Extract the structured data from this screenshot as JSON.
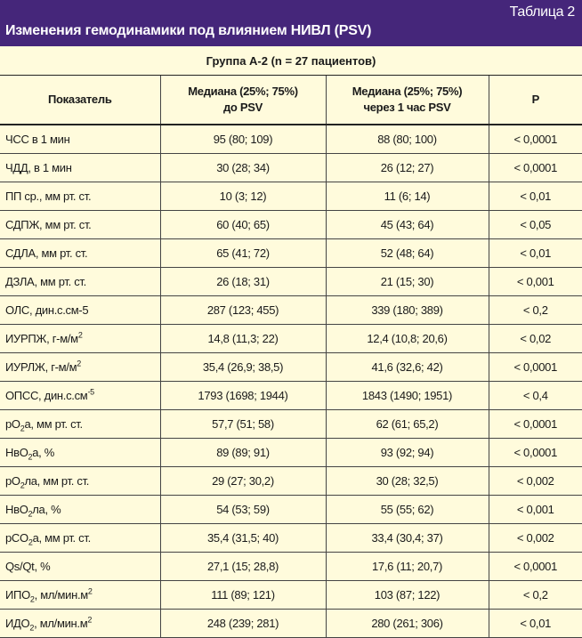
{
  "table_number": "Таблица 2",
  "title": "Изменения гемодинамики под влиянием НИВЛ (PSV)",
  "group": "Группа А-2 (n = 27 пациентов)",
  "colors": {
    "banner": "#45267a",
    "background": "#fffbdc"
  },
  "headers": {
    "indicator": "Показатель",
    "before_line1": "Медиана (25%; 75%)",
    "before_line2": "до PSV",
    "after_line1": "Медиана (25%; 75%)",
    "after_line2": "через 1 час PSV",
    "p": "P"
  },
  "rows": [
    {
      "label": [
        {
          "t": "ЧСС в 1 мин"
        }
      ],
      "before": "95 (80; 109)",
      "after": "88 (80; 100)",
      "p": "< 0,0001"
    },
    {
      "label": [
        {
          "t": "ЧДД, в 1 мин"
        }
      ],
      "before": "30 (28; 34)",
      "after": "26 (12; 27)",
      "p": "< 0,0001"
    },
    {
      "label": [
        {
          "t": "ПП ср., мм рт. ст."
        }
      ],
      "before": "10 (3; 12)",
      "after": "11 (6; 14)",
      "p": "< 0,01"
    },
    {
      "label": [
        {
          "t": "СДПЖ, мм рт. ст."
        }
      ],
      "before": "60 (40; 65)",
      "after": "45 (43; 64)",
      "p": "< 0,05"
    },
    {
      "label": [
        {
          "t": "СДЛА, мм рт. ст."
        }
      ],
      "before": "65 (41; 72)",
      "after": "52 (48; 64)",
      "p": "< 0,01"
    },
    {
      "label": [
        {
          "t": "ДЗЛА, мм рт. ст."
        }
      ],
      "before": "26 (18; 31)",
      "after": "21 (15; 30)",
      "p": "< 0,001"
    },
    {
      "label": [
        {
          "t": "ОЛС, дин.с.см-5"
        }
      ],
      "before": "287 (123; 455)",
      "after": "339 (180; 389)",
      "p": "< 0,2"
    },
    {
      "label": [
        {
          "t": "ИУРПЖ, г-м/м"
        },
        {
          "sup": "2"
        }
      ],
      "before": "14,8 (11,3; 22)",
      "after": "12,4 (10,8; 20,6)",
      "p": "< 0,02"
    },
    {
      "label": [
        {
          "t": "ИУРЛЖ, г-м/м"
        },
        {
          "sup": "2"
        }
      ],
      "before": "35,4 (26,9; 38,5)",
      "after": "41,6 (32,6; 42)",
      "p": "< 0,0001"
    },
    {
      "label": [
        {
          "t": "ОПСС, дин.с.см"
        },
        {
          "sup": "-5"
        }
      ],
      "before": "1793 (1698; 1944)",
      "after": "1843 (1490; 1951)",
      "p": "< 0,4"
    },
    {
      "label": [
        {
          "t": "pO"
        },
        {
          "sub": "2"
        },
        {
          "t": "а, мм рт. ст."
        }
      ],
      "before": "57,7 (51; 58)",
      "after": "62 (61; 65,2)",
      "p": "< 0,0001"
    },
    {
      "label": [
        {
          "t": "HвO"
        },
        {
          "sub": "2"
        },
        {
          "t": "а, %"
        }
      ],
      "before": "89 (89; 91)",
      "after": "93 (92; 94)",
      "p": "< 0,0001"
    },
    {
      "label": [
        {
          "t": "pO"
        },
        {
          "sub": "2"
        },
        {
          "t": "ла, мм рт. ст."
        }
      ],
      "before": "29 (27; 30,2)",
      "after": "30 (28; 32,5)",
      "p": "< 0,002"
    },
    {
      "label": [
        {
          "t": "HвO"
        },
        {
          "sub": "2"
        },
        {
          "t": "ла, %"
        }
      ],
      "before": "54 (53; 59)",
      "after": "55 (55; 62)",
      "p": "< 0,001"
    },
    {
      "label": [
        {
          "t": "pCO"
        },
        {
          "sub": "2"
        },
        {
          "t": "а, мм рт. ст."
        }
      ],
      "before": "35,4 (31,5; 40)",
      "after": "33,4 (30,4; 37)",
      "p": "< 0,002"
    },
    {
      "label": [
        {
          "t": "Qs/Qt, %"
        }
      ],
      "before": "27,1 (15; 28,8)",
      "after": "17,6 (11; 20,7)",
      "p": "< 0,0001"
    },
    {
      "label": [
        {
          "t": "ИПО"
        },
        {
          "sub": "2"
        },
        {
          "t": ", мл/мин.м"
        },
        {
          "sup": "2"
        }
      ],
      "before": "111 (89; 121)",
      "after": "103 (87; 122)",
      "p": "< 0,2"
    },
    {
      "label": [
        {
          "t": "ИДО"
        },
        {
          "sub": "2"
        },
        {
          "t": ", мл/мин.м"
        },
        {
          "sup": "2"
        }
      ],
      "before": "248 (239; 281)",
      "after": "280 (261; 306)",
      "p": "< 0,01"
    }
  ]
}
